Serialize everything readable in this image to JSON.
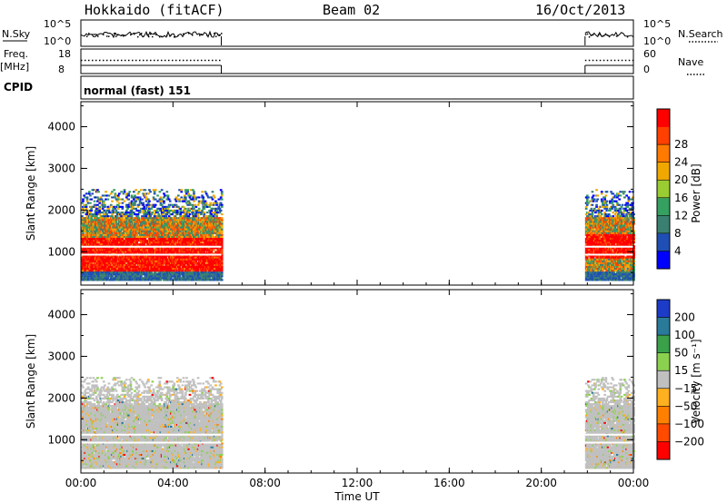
{
  "header": {
    "title": "Hokkaido (fitACF)",
    "beam": "Beam 02",
    "date": "16/Oct/2013"
  },
  "strip_labels": {
    "nsky": "N.Sky",
    "nsky_ticks": [
      "10^5",
      "10^0"
    ],
    "nsearch": "N.Search",
    "nsearch_ticks": [
      "10^5",
      "10^0"
    ],
    "freq": "Freq.",
    "freq_unit": "[MHz]",
    "freq_ticks": [
      "18",
      "8"
    ],
    "nave": "Nave",
    "nave_ticks": [
      "60",
      "0"
    ],
    "cpid": "CPID",
    "cpid_value": "normal (fast) 151"
  },
  "chart_data": [
    {
      "type": "heatmap",
      "name": "power",
      "ylabel": "Slant Range [km]",
      "yticks": [
        "1000",
        "2000",
        "3000",
        "4000"
      ],
      "ylim": [
        200,
        4600
      ],
      "xlim": [
        0,
        24
      ],
      "colorbar_label": "Power [dB]",
      "colorbar_ticks": [
        "4",
        "8",
        "12",
        "16",
        "20",
        "24",
        "28"
      ],
      "colorbar_colors": [
        "#0000ff",
        "#1f4fb4",
        "#3a8070",
        "#35a060",
        "#9acd32",
        "#f0a800",
        "#ff7a00",
        "#ff4000",
        "#ff0000"
      ],
      "data_segments": [
        {
          "start_hour": 0.0,
          "end_hour": 6.1,
          "typical_range_km": [
            300,
            2500
          ],
          "peak_power_range_km": [
            500,
            1300
          ]
        },
        {
          "start_hour": 21.9,
          "end_hour": 24.0,
          "typical_range_km": [
            300,
            2500
          ],
          "peak_power_range_km": [
            800,
            1400
          ]
        }
      ]
    },
    {
      "type": "heatmap",
      "name": "velocity",
      "ylabel": "Slant Range [km]",
      "yticks": [
        "1000",
        "2000",
        "3000",
        "4000"
      ],
      "ylim": [
        200,
        4600
      ],
      "xlim": [
        0,
        24
      ],
      "xlabel": "Time UT",
      "xticks": [
        "00:00",
        "04:00",
        "08:00",
        "12:00",
        "16:00",
        "20:00",
        "00:00"
      ],
      "colorbar_label": "Velocity [m s⁻¹]",
      "colorbar_ticks": [
        "200",
        "100",
        "50",
        "15",
        "−15",
        "−50",
        "−100",
        "−200"
      ],
      "colorbar_colors": [
        "#1c3cc8",
        "#2a7a9a",
        "#3aa04a",
        "#8cd050",
        "#c0c0c0",
        "#ffb020",
        "#ff8000",
        "#ff4a00",
        "#ff0000"
      ],
      "data_segments": [
        {
          "start_hour": 0.0,
          "end_hour": 6.1,
          "typical_range_km": [
            300,
            2500
          ],
          "dominant_velocity": "-15 to 15"
        },
        {
          "start_hour": 21.9,
          "end_hour": 24.0,
          "typical_range_km": [
            300,
            2500
          ],
          "dominant_velocity": "-15 to 15"
        }
      ]
    }
  ]
}
